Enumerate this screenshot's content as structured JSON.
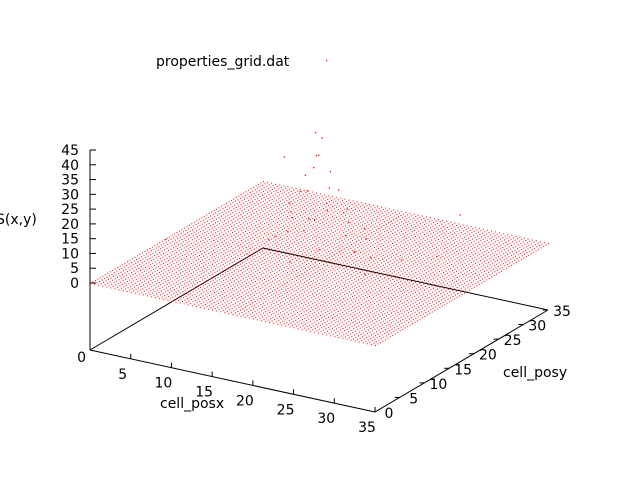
{
  "chart_data": {
    "type": "scatter",
    "legend": {
      "label": "properties_grid.dat",
      "placement": "top-center",
      "color": "#ff0000"
    },
    "xlabel": "cell_posx",
    "ylabel": "cell_posy",
    "zlabel": "S(x,y)",
    "xlim": [
      0,
      35
    ],
    "ylim": [
      0,
      35
    ],
    "zlim": [
      0,
      45
    ],
    "x_ticks": [
      "0",
      "5",
      "10",
      "15",
      "20",
      "25",
      "30",
      "35"
    ],
    "y_ticks": [
      "0",
      "5",
      "10",
      "15",
      "20",
      "25",
      "30",
      "35"
    ],
    "z_ticks": [
      "0",
      "5",
      "10",
      "15",
      "20",
      "25",
      "30",
      "35",
      "40",
      "45"
    ],
    "base_plane_z": 0,
    "grid_spacing": 0.5,
    "series": [
      {
        "color": "#ff0000",
        "description_points": "plane of points at S=0 over 0..35 x 0..35 with scattered outliers up to ~45 concentrated near the center",
        "outliers": [
          [
            17.0,
            17.5,
            44
          ],
          [
            17.5,
            18.0,
            42
          ],
          [
            18.0,
            16.5,
            38
          ],
          [
            16.5,
            18.5,
            35
          ],
          [
            17.2,
            16.8,
            33
          ],
          [
            18.4,
            18.2,
            31
          ],
          [
            15.8,
            17.4,
            29
          ],
          [
            19.0,
            17.0,
            27
          ],
          [
            16.0,
            16.0,
            25
          ],
          [
            18.8,
            19.2,
            24
          ],
          [
            15.2,
            18.8,
            22
          ],
          [
            19.6,
            15.6,
            21
          ],
          [
            14.6,
            16.2,
            20
          ],
          [
            20.2,
            18.6,
            19
          ],
          [
            17.8,
            14.8,
            18
          ],
          [
            16.6,
            20.4,
            17
          ],
          [
            21.0,
            17.6,
            16
          ],
          [
            13.8,
            17.8,
            15
          ],
          [
            18.2,
            21.2,
            14
          ],
          [
            15.6,
            14.2,
            13
          ],
          [
            21.6,
            19.8,
            12
          ],
          [
            13.0,
            19.4,
            11
          ],
          [
            19.8,
            13.6,
            10
          ],
          [
            14.4,
            21.6,
            9
          ],
          [
            22.4,
            16.4,
            8
          ],
          [
            12.4,
            15.6,
            7
          ],
          [
            20.6,
            21.8,
            6
          ],
          [
            16.8,
            12.6,
            5
          ],
          [
            11.6,
            18.2,
            5
          ],
          [
            23.0,
            18.8,
            4
          ],
          [
            17.4,
            23.0,
            4
          ],
          [
            24.6,
            15.0,
            3
          ],
          [
            10.8,
            13.8,
            3
          ],
          [
            25.2,
            21.4,
            2
          ],
          [
            12.0,
            23.4,
            2
          ],
          [
            8.0,
            26.0,
            22
          ],
          [
            27.0,
            9.0,
            18
          ],
          [
            29.0,
            27.0,
            14
          ],
          [
            5.0,
            7.0,
            11
          ],
          [
            31.0,
            19.0,
            9
          ]
        ]
      }
    ]
  }
}
